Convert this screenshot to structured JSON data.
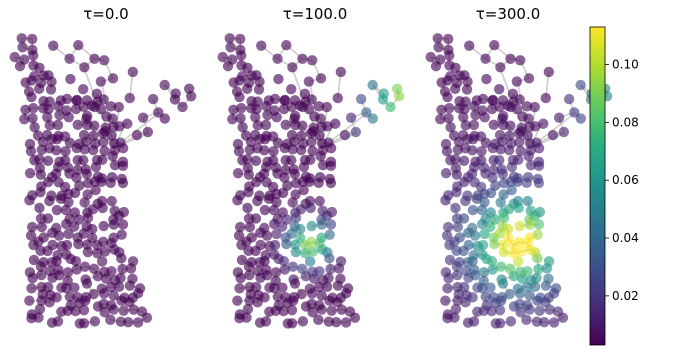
{
  "chart_data": {
    "type": "scatter",
    "description_kind": "graph node heat diffusion on a road network",
    "panels": [
      {
        "title": "τ=0.0",
        "tau": 0.0,
        "peak": 0.0,
        "hot_nodes": []
      },
      {
        "title": "τ=100.0",
        "tau": 100.0,
        "peak": 0.095,
        "tail_peak": 0.1
      },
      {
        "title": "τ=300.0",
        "tau": 300.0,
        "peak": 0.105,
        "tail_peak": 0.055
      }
    ],
    "colorbar": {
      "colormap": "viridis",
      "range": [
        0.003,
        0.113
      ],
      "ticks": [
        {
          "value": 0.02,
          "label": "0.02"
        },
        {
          "value": 0.04,
          "label": "0.04"
        },
        {
          "value": 0.06,
          "label": "0.06"
        },
        {
          "value": 0.08,
          "label": "0.08"
        },
        {
          "value": 0.1,
          "label": "0.10"
        }
      ]
    },
    "colors": {
      "edge": "#b8b8b8",
      "low": "#440154",
      "high": "#fde725"
    }
  }
}
